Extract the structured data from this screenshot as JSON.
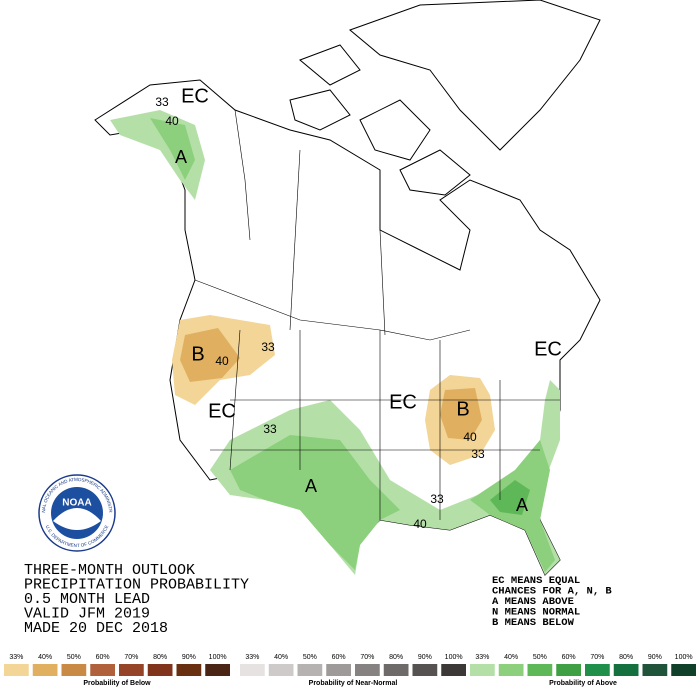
{
  "title_lines": [
    "THREE-MONTH OUTLOOK",
    "PRECIPITATION PROBABILITY",
    "0.5 MONTH LEAD",
    "VALID JFM 2019",
    "MADE 20 DEC 2018"
  ],
  "key_lines": [
    "EC MEANS EQUAL",
    "CHANCES FOR A, N, B",
    "A MEANS ABOVE",
    "N MEANS NORMAL",
    "B MEANS BELOW"
  ],
  "map_labels": [
    "EC",
    "33",
    "40",
    "A",
    "B",
    "40",
    "33",
    "EC",
    "33",
    "A",
    "EC",
    "B",
    "40",
    "33",
    "33",
    "40",
    "A",
    "EC"
  ],
  "logo": {
    "name": "NOAA",
    "ring_top": "NATIONAL OCEANIC AND ATMOSPHERIC ADMINISTRATION",
    "ring_bottom": "U.S. DEPARTMENT OF COMMERCE"
  },
  "color_bars": [
    {
      "title": "Probability of Below",
      "ticks": [
        "33%",
        "40%",
        "50%",
        "60%",
        "70%",
        "80%",
        "90%",
        "100%"
      ],
      "colors": [
        "#f2d597",
        "#e0b060",
        "#c98a45",
        "#b0603a",
        "#964428",
        "#80341c",
        "#683010",
        "#4a2414"
      ]
    },
    {
      "title": "Probability of Near-Normal",
      "ticks": [
        "33%",
        "40%",
        "50%",
        "60%",
        "70%",
        "80%",
        "90%",
        "100%"
      ],
      "colors": [
        "#e6e2e2",
        "#cfcaca",
        "#b7b2b2",
        "#9f9a9a",
        "#878282",
        "#6f6a6a",
        "#575252",
        "#3c3838"
      ]
    },
    {
      "title": "Probability of Above",
      "ticks": [
        "33%",
        "40%",
        "50%",
        "60%",
        "70%",
        "80%",
        "90%",
        "100%"
      ],
      "colors": [
        "#b4e0a8",
        "#8ccf7c",
        "#5fb858",
        "#3ea043",
        "#1f8f4a",
        "#157040",
        "#20543a",
        "#10402a"
      ]
    }
  ]
}
